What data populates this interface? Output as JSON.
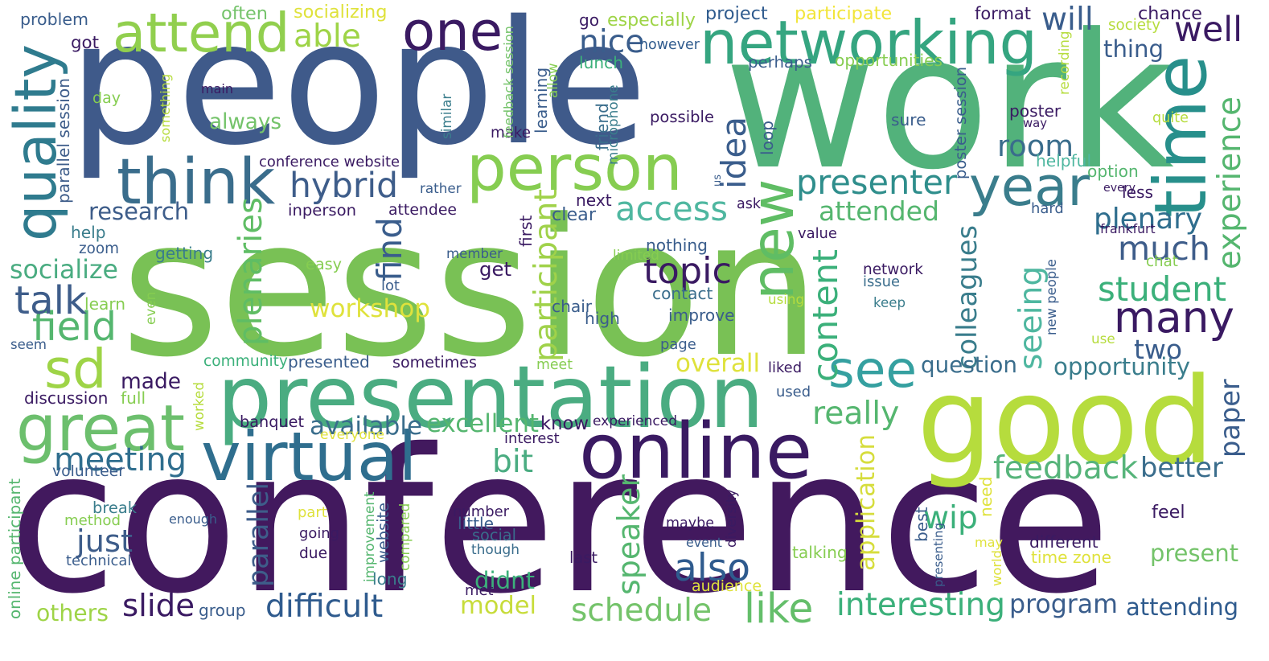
{
  "words": [
    {
      "text": "session",
      "color": "#79c155"
    },
    {
      "text": "conference",
      "color": "#42195e"
    },
    {
      "text": "people",
      "color": "#3f5a8a"
    },
    {
      "text": "work",
      "color": "#52b27b"
    },
    {
      "text": "good",
      "color": "#b6dc3d"
    },
    {
      "text": "presentation",
      "color": "#4aac81"
    },
    {
      "text": "networking",
      "color": "#35a580"
    },
    {
      "text": "one",
      "color": "#3a1a62"
    },
    {
      "text": "person",
      "color": "#86cd51"
    },
    {
      "text": "time",
      "color": "#278f8b"
    },
    {
      "text": "online",
      "color": "#3a1a62"
    },
    {
      "text": "attend",
      "color": "#91cf4e"
    },
    {
      "text": "think",
      "color": "#3a6d8c"
    },
    {
      "text": "quality",
      "color": "#2f7b8e"
    },
    {
      "text": "great",
      "color": "#6cbf6d"
    },
    {
      "text": "virtual",
      "color": "#2f6e8e"
    },
    {
      "text": "sd",
      "color": "#9ed447"
    },
    {
      "text": "new",
      "color": "#5fbd64"
    },
    {
      "text": "year",
      "color": "#3a7d8c"
    },
    {
      "text": "many",
      "color": "#3a1a62"
    },
    {
      "text": "see",
      "color": "#35a0a0"
    },
    {
      "text": "presenter",
      "color": "#2f8e8c"
    },
    {
      "text": "schedule",
      "color": "#74c36a"
    },
    {
      "text": "access",
      "color": "#4fb7a0"
    },
    {
      "text": "like",
      "color": "#64be6a"
    },
    {
      "text": "also",
      "color": "#2f5b8e"
    },
    {
      "text": "feedback",
      "color": "#56b47a"
    },
    {
      "text": "experience",
      "color": "#55b66f"
    },
    {
      "text": "hybrid",
      "color": "#3e5d8a"
    },
    {
      "text": "topic",
      "color": "#3a1a62"
    },
    {
      "text": "meeting",
      "color": "#2f6e8e"
    },
    {
      "text": "student",
      "color": "#3bb07a"
    },
    {
      "text": "field",
      "color": "#55b66f"
    },
    {
      "text": "workshop",
      "color": "#dfe23c"
    },
    {
      "text": "talk",
      "color": "#3e5d8a"
    },
    {
      "text": "plenary",
      "color": "#2f6e8e"
    },
    {
      "text": "much",
      "color": "#3e5d8a"
    },
    {
      "text": "room",
      "color": "#3a6d8c"
    },
    {
      "text": "well",
      "color": "#3a1a62"
    },
    {
      "text": "will",
      "color": "#3a5d8c"
    },
    {
      "text": "nice",
      "color": "#3a5d8c"
    },
    {
      "text": "able",
      "color": "#9ed447"
    },
    {
      "text": "idea",
      "color": "#3a5d8c"
    },
    {
      "text": "find",
      "color": "#3a5d8c"
    },
    {
      "text": "plenaries",
      "color": "#5fbd64"
    },
    {
      "text": "participant",
      "color": "#a0d24a"
    },
    {
      "text": "content",
      "color": "#3bb07a"
    },
    {
      "text": "seeing",
      "color": "#4fb7a0"
    },
    {
      "text": "colleagues",
      "color": "#3a7d8c"
    },
    {
      "text": "speaker",
      "color": "#55b66f"
    },
    {
      "text": "parallel",
      "color": "#3e5d8a"
    },
    {
      "text": "application",
      "color": "#d6dd3d"
    },
    {
      "text": "paper",
      "color": "#3a5d8c"
    },
    {
      "text": "research",
      "color": "#3e5d8a"
    },
    {
      "text": "socialize",
      "color": "#4aac81"
    },
    {
      "text": "always",
      "color": "#74c36a"
    },
    {
      "text": "attended",
      "color": "#55b66f"
    },
    {
      "text": "made",
      "color": "#3a1a62"
    },
    {
      "text": "just",
      "color": "#3e5d8a"
    },
    {
      "text": "slide",
      "color": "#3a1a62"
    },
    {
      "text": "difficult",
      "color": "#2f5b8e"
    },
    {
      "text": "model",
      "color": "#c7dc3a"
    },
    {
      "text": "interesting",
      "color": "#3bb07a"
    },
    {
      "text": "program",
      "color": "#3a5d8c"
    },
    {
      "text": "attending",
      "color": "#2f5b8e"
    },
    {
      "text": "present",
      "color": "#74c36a"
    },
    {
      "text": "better",
      "color": "#3a6d8c"
    },
    {
      "text": "opportunity",
      "color": "#3a7d8c"
    },
    {
      "text": "two",
      "color": "#3a5d8c"
    },
    {
      "text": "question",
      "color": "#3a6d8c"
    },
    {
      "text": "really",
      "color": "#55b66f"
    },
    {
      "text": "know",
      "color": "#3a1a62"
    },
    {
      "text": "excellent",
      "color": "#55b66f"
    },
    {
      "text": "available",
      "color": "#3a6d8c"
    },
    {
      "text": "bit",
      "color": "#4aac81"
    },
    {
      "text": "wip",
      "color": "#3bb07a"
    },
    {
      "text": "didnt",
      "color": "#3bb07a"
    },
    {
      "text": "overall",
      "color": "#dfe23c"
    },
    {
      "text": "get",
      "color": "#3a1a62"
    },
    {
      "text": "others",
      "color": "#9ed447"
    },
    {
      "text": "thing",
      "color": "#3a5d8c"
    },
    {
      "text": "format",
      "color": "#3a1a62"
    },
    {
      "text": "chance",
      "color": "#3a1a62"
    },
    {
      "text": "society",
      "color": "#b6dc3d"
    },
    {
      "text": "project",
      "color": "#2f5b8e"
    },
    {
      "text": "participate",
      "color": "#f2e53a"
    },
    {
      "text": "often",
      "color": "#74c36a"
    },
    {
      "text": "socializing",
      "color": "#dfe23c"
    },
    {
      "text": "problem",
      "color": "#3a5d8c"
    },
    {
      "text": "got",
      "color": "#3a1a62"
    },
    {
      "text": "go",
      "color": "#3a1a62"
    },
    {
      "text": "especially",
      "color": "#9ed447"
    },
    {
      "text": "however",
      "color": "#2f5b8e"
    },
    {
      "text": "lunch",
      "color": "#3bb07a"
    },
    {
      "text": "perhaps",
      "color": "#3a5d8c"
    },
    {
      "text": "opportunities",
      "color": "#86cd51"
    },
    {
      "text": "day",
      "color": "#86cd51"
    },
    {
      "text": "main",
      "color": "#3a1a62"
    },
    {
      "text": "conference website",
      "color": "#3a1a62"
    },
    {
      "text": "inperson",
      "color": "#3a1a62"
    },
    {
      "text": "attendee",
      "color": "#3a1a62"
    },
    {
      "text": "rather",
      "color": "#3a5d8c"
    },
    {
      "text": "next",
      "color": "#3a1a62"
    },
    {
      "text": "clear",
      "color": "#3a5d8c"
    },
    {
      "text": "first",
      "color": "#3a1a62"
    },
    {
      "text": "possible",
      "color": "#3a1a62"
    },
    {
      "text": "make",
      "color": "#3a1a62"
    },
    {
      "text": "loop",
      "color": "#3a5d8c"
    },
    {
      "text": "friend",
      "color": "#3a6d8c"
    },
    {
      "text": "microphone",
      "color": "#3a7d8c"
    },
    {
      "text": "learning",
      "color": "#3a5d8c"
    },
    {
      "text": "allow",
      "color": "#86cd51"
    },
    {
      "text": "similar",
      "color": "#3a7d8c"
    },
    {
      "text": "something",
      "color": "#b6dc3d"
    },
    {
      "text": "feedback session",
      "color": "#74c36a"
    },
    {
      "text": "parallel session",
      "color": "#3e5d8a"
    },
    {
      "text": "poster session",
      "color": "#3a5d8c"
    },
    {
      "text": "recording",
      "color": "#b6dc3d"
    },
    {
      "text": "poster",
      "color": "#3a1a62"
    },
    {
      "text": "way",
      "color": "#3a1a62"
    },
    {
      "text": "sure",
      "color": "#3a5d8c"
    },
    {
      "text": "quite",
      "color": "#b6dc3d"
    },
    {
      "text": "helpful",
      "color": "#4fb7a0"
    },
    {
      "text": "option",
      "color": "#55b66f"
    },
    {
      "text": "every",
      "color": "#3a1a62"
    },
    {
      "text": "less",
      "color": "#3a1a62"
    },
    {
      "text": "hard",
      "color": "#3a5d8c"
    },
    {
      "text": "frankfurt",
      "color": "#3a1a62"
    },
    {
      "text": "us",
      "color": "#3a5d8c"
    },
    {
      "text": "ask",
      "color": "#3a1a62"
    },
    {
      "text": "value",
      "color": "#3a1a62"
    },
    {
      "text": "nothing",
      "color": "#3a5d8c"
    },
    {
      "text": "limited",
      "color": "#86cd51"
    },
    {
      "text": "chat",
      "color": "#86cd51"
    },
    {
      "text": "network",
      "color": "#3a1a62"
    },
    {
      "text": "issue",
      "color": "#3a6d8c"
    },
    {
      "text": "keep",
      "color": "#3a7d8c"
    },
    {
      "text": "new people",
      "color": "#3a5d8c"
    },
    {
      "text": "using",
      "color": "#b6dc3d"
    },
    {
      "text": "use",
      "color": "#b6dc3d"
    },
    {
      "text": "help",
      "color": "#3a7d8c"
    },
    {
      "text": "zoom",
      "color": "#3a5d8c"
    },
    {
      "text": "getting",
      "color": "#3a7d8c"
    },
    {
      "text": "easy",
      "color": "#86cd51"
    },
    {
      "text": "member",
      "color": "#3a5d8c"
    },
    {
      "text": "lot",
      "color": "#3a5d8c"
    },
    {
      "text": "learn",
      "color": "#86cd51"
    },
    {
      "text": "even",
      "color": "#86cd51"
    },
    {
      "text": "contact",
      "color": "#3a6d8c"
    },
    {
      "text": "improve",
      "color": "#3a5d8c"
    },
    {
      "text": "chair",
      "color": "#3a5d8c"
    },
    {
      "text": "high",
      "color": "#3a5d8c"
    },
    {
      "text": "seem",
      "color": "#3a5d8c"
    },
    {
      "text": "page",
      "color": "#3a5d8c"
    },
    {
      "text": "community",
      "color": "#3bb07a"
    },
    {
      "text": "presented",
      "color": "#3a5d8c"
    },
    {
      "text": "sometimes",
      "color": "#3a1a62"
    },
    {
      "text": "meet",
      "color": "#86cd51"
    },
    {
      "text": "liked",
      "color": "#3a1a62"
    },
    {
      "text": "discussion",
      "color": "#3a1a62"
    },
    {
      "text": "full",
      "color": "#86cd51"
    },
    {
      "text": "worked",
      "color": "#b6dc3d"
    },
    {
      "text": "used",
      "color": "#3a5d8c"
    },
    {
      "text": "banquet",
      "color": "#3a1a62"
    },
    {
      "text": "experienced",
      "color": "#3a1a62"
    },
    {
      "text": "everyone",
      "color": "#dfe23c"
    },
    {
      "text": "interest",
      "color": "#3a1a62"
    },
    {
      "text": "volunteer",
      "color": "#3a5d8c"
    },
    {
      "text": "online participant",
      "color": "#55b66f"
    },
    {
      "text": "break",
      "color": "#3a7d8c"
    },
    {
      "text": "method",
      "color": "#86cd51"
    },
    {
      "text": "enough",
      "color": "#3a5d8c"
    },
    {
      "text": "part",
      "color": "#dfe23c"
    },
    {
      "text": "improvement",
      "color": "#55b66f"
    },
    {
      "text": "website",
      "color": "#3a5d8c"
    },
    {
      "text": "compared",
      "color": "#86cd51"
    },
    {
      "text": "number",
      "color": "#3a1a62"
    },
    {
      "text": "little",
      "color": "#3a5d8c"
    },
    {
      "text": "social",
      "color": "#3a6d8c"
    },
    {
      "text": "though",
      "color": "#3a6d8c"
    },
    {
      "text": "going",
      "color": "#3a1a62"
    },
    {
      "text": "due",
      "color": "#3a1a62"
    },
    {
      "text": "maybe",
      "color": "#3a1a62"
    },
    {
      "text": "event",
      "color": "#3a5d8c"
    },
    {
      "text": "diversity",
      "color": "#3a1a62"
    },
    {
      "text": "last",
      "color": "#3a1a62"
    },
    {
      "text": "audience",
      "color": "#dfe23c"
    },
    {
      "text": "technical",
      "color": "#3a5d8c"
    },
    {
      "text": "long",
      "color": "#3a7d8c"
    },
    {
      "text": "met",
      "color": "#3a1a62"
    },
    {
      "text": "talking",
      "color": "#86cd51"
    },
    {
      "text": "best",
      "color": "#3a5d8c"
    },
    {
      "text": "presenting",
      "color": "#3a5d8c"
    },
    {
      "text": "need",
      "color": "#dfe23c"
    },
    {
      "text": "world",
      "color": "#dfe23c"
    },
    {
      "text": "may",
      "color": "#dfe23c"
    },
    {
      "text": "different",
      "color": "#3a1a62"
    },
    {
      "text": "time zone",
      "color": "#dfe23c"
    },
    {
      "text": "feel",
      "color": "#3a1a62"
    },
    {
      "text": "group",
      "color": "#3a5d8c"
    }
  ]
}
